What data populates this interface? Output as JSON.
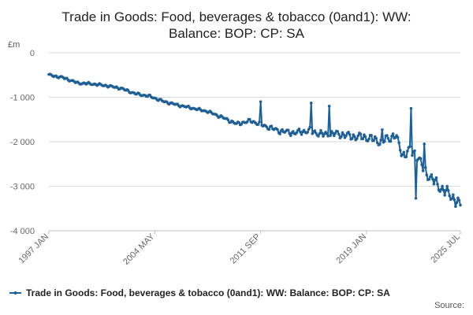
{
  "chart_data": {
    "type": "line",
    "title_lines": [
      "Trade in Goods: Food, beverages & tobacco (0and1): WW:",
      "Balance: BOP: CP: SA"
    ],
    "y_unit_label": "£m",
    "ylim": [
      -4000,
      0
    ],
    "y_ticks": [
      {
        "value": 0,
        "label": "0"
      },
      {
        "value": -1000,
        "label": "-1 000"
      },
      {
        "value": -2000,
        "label": "-2 000"
      },
      {
        "value": -3000,
        "label": "-3 000"
      },
      {
        "value": -4000,
        "label": "-4 000"
      }
    ],
    "x_start": "1997 JAN",
    "x_end": "2025 JUL",
    "x_ticks": [
      {
        "label": "1997 JAN",
        "year": 1997,
        "month": 1
      },
      {
        "label": "2004 MAY",
        "year": 2004,
        "month": 5
      },
      {
        "label": "2011 SEP",
        "year": 2011,
        "month": 9
      },
      {
        "label": "2019 JAN",
        "year": 2019,
        "month": 1
      },
      {
        "label": "2025 JUL",
        "year": 2025,
        "month": 7
      }
    ],
    "series": [
      {
        "name": "Trade in Goods: Food, beverages & tobacco (0and1): WW: Balance: BOP: CP: SA",
        "color": "#206095",
        "anchors": [
          {
            "year": 1997,
            "month": 1,
            "value": -500
          },
          {
            "year": 1998,
            "month": 1,
            "value": -560
          },
          {
            "year": 1999,
            "month": 1,
            "value": -680
          },
          {
            "year": 2000,
            "month": 1,
            "value": -700
          },
          {
            "year": 2001,
            "month": 1,
            "value": -740
          },
          {
            "year": 2002,
            "month": 1,
            "value": -800
          },
          {
            "year": 2003,
            "month": 1,
            "value": -920
          },
          {
            "year": 2004,
            "month": 1,
            "value": -980
          },
          {
            "year": 2005,
            "month": 1,
            "value": -1100
          },
          {
            "year": 2006,
            "month": 1,
            "value": -1180
          },
          {
            "year": 2007,
            "month": 1,
            "value": -1250
          },
          {
            "year": 2008,
            "month": 1,
            "value": -1320
          },
          {
            "year": 2009,
            "month": 1,
            "value": -1450
          },
          {
            "year": 2010,
            "month": 1,
            "value": -1600
          },
          {
            "year": 2011,
            "month": 1,
            "value": -1530
          },
          {
            "year": 2012,
            "month": 1,
            "value": -1650
          },
          {
            "year": 2013,
            "month": 1,
            "value": -1760
          },
          {
            "year": 2014,
            "month": 1,
            "value": -1800
          },
          {
            "year": 2015,
            "month": 1,
            "value": -1750
          },
          {
            "year": 2016,
            "month": 1,
            "value": -1840
          },
          {
            "year": 2017,
            "month": 1,
            "value": -1820
          },
          {
            "year": 2018,
            "month": 1,
            "value": -1880
          },
          {
            "year": 2019,
            "month": 1,
            "value": -1900
          },
          {
            "year": 2020,
            "month": 1,
            "value": -2000
          },
          {
            "year": 2021,
            "month": 1,
            "value": -1850
          },
          {
            "year": 2021,
            "month": 7,
            "value": -2300
          },
          {
            "year": 2022,
            "month": 1,
            "value": -2200
          },
          {
            "year": 2022,
            "month": 7,
            "value": -2300
          },
          {
            "year": 2023,
            "month": 1,
            "value": -2650
          },
          {
            "year": 2024,
            "month": 1,
            "value": -3000
          },
          {
            "year": 2025,
            "month": 1,
            "value": -3250
          },
          {
            "year": 2025,
            "month": 7,
            "value": -3450
          }
        ],
        "spikes": [
          {
            "year": 2011,
            "month": 9,
            "value": -1100
          },
          {
            "year": 2015,
            "month": 3,
            "value": -1130
          },
          {
            "year": 2016,
            "month": 6,
            "value": -1200
          },
          {
            "year": 2020,
            "month": 2,
            "value": -1730
          },
          {
            "year": 2022,
            "month": 2,
            "value": -1250
          },
          {
            "year": 2022,
            "month": 6,
            "value": -3270
          },
          {
            "year": 2023,
            "month": 1,
            "value": -2050
          }
        ]
      }
    ],
    "legend_label": "Trade in Goods: Food, beverages & tobacco (0and1): WW: Balance: BOP: CP: SA",
    "source_label": "Source:"
  }
}
